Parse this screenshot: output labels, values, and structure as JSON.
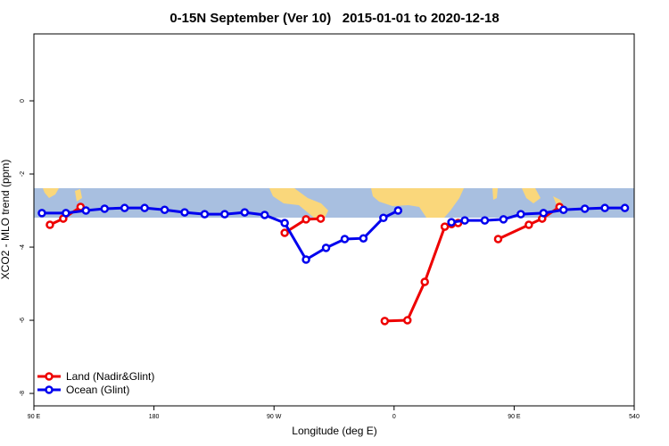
{
  "chart_data": {
    "type": "line",
    "title": "0-15N September (Ver 10)   2015-01-01 to 2020-12-18",
    "xlabel": "Longitude (deg E)",
    "ylabel": "XCO2 - MLO trend (ppm)",
    "xlim": [
      90,
      540
    ],
    "ylim": [
      -8.34,
      1.83
    ],
    "xticks": [
      {
        "value": 90,
        "label": "90 E"
      },
      180,
      {
        "value": 270,
        "label": "90 W"
      },
      {
        "value": 360,
        "label": "0"
      },
      {
        "value": 450,
        "label": "90 E"
      },
      540
    ],
    "yticks": [
      0,
      -2,
      -4,
      -6,
      -8
    ],
    "legend": "bottom-left",
    "series": [
      {
        "name": "Land (Nadir&Glint)",
        "color": "#ee0000",
        "x": [
          102,
          112,
          125,
          200,
          278,
          294,
          305,
          330,
          353,
          370,
          383,
          398,
          403,
          408,
          420,
          438,
          461,
          471,
          484
        ],
        "values": [
          -3.39,
          -3.22,
          -2.9,
          null,
          -3.61,
          -3.24,
          -3.22,
          null,
          -6.02,
          -6.0,
          -4.95,
          -3.44,
          -3.37,
          -3.34,
          null,
          -3.78,
          -3.39,
          -3.22,
          -2.9
        ]
      },
      {
        "name": "Ocean (Glint)",
        "color": "#0000ee",
        "x": [
          96,
          114,
          129,
          143,
          158,
          173,
          188,
          203,
          218,
          233,
          248,
          263,
          278,
          294,
          309,
          323,
          337,
          352,
          363,
          385,
          403,
          413,
          428,
          442,
          455,
          472,
          487,
          503,
          518,
          533
        ],
        "values": [
          -3.07,
          -3.07,
          -3.0,
          -2.95,
          -2.93,
          -2.93,
          -2.98,
          -3.05,
          -3.1,
          -3.1,
          -3.05,
          -3.12,
          -3.34,
          -4.34,
          -4.02,
          -3.78,
          -3.76,
          -3.2,
          -3.0,
          null,
          -3.32,
          -3.27,
          -3.27,
          -3.24,
          -3.1,
          -3.07,
          -2.98,
          -2.95,
          -2.93,
          -2.93
        ]
      }
    ]
  }
}
